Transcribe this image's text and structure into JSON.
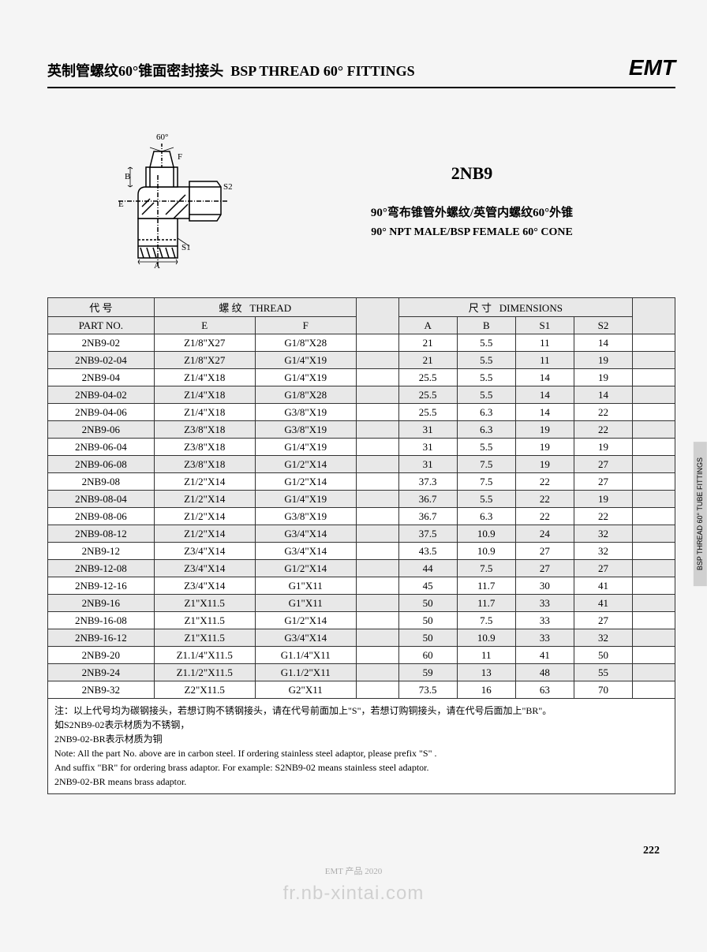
{
  "header": {
    "title_cn": "英制管螺纹60°锥面密封接头",
    "title_en": "BSP THREAD 60° FITTINGS",
    "logo": "EMT"
  },
  "product": {
    "code": "2NB9",
    "desc_cn": "90°弯布锥管外螺纹/英管内螺纹60°外锥",
    "desc_en": "90° NPT MALE/BSP FEMALE 60° CONE"
  },
  "diagram_labels": {
    "angle": "60°",
    "F": "F",
    "B": "B",
    "E": "E",
    "A": "A",
    "S1": "S1",
    "S2": "S2"
  },
  "table": {
    "header_groups": {
      "part_cn": "代 号",
      "part_en": "PART NO.",
      "thread_cn": "螺 纹",
      "thread_en": "THREAD",
      "dim_cn": "尺 寸",
      "dim_en": "DIMENSIONS"
    },
    "columns": [
      "E",
      "F",
      "A",
      "B",
      "S1",
      "S2"
    ],
    "rows": [
      {
        "p": "2NB9-02",
        "e": "Z1/8\"X27",
        "f": "G1/8\"X28",
        "a": "21",
        "b": "5.5",
        "s1": "11",
        "s2": "14"
      },
      {
        "p": "2NB9-02-04",
        "e": "Z1/8\"X27",
        "f": "G1/4\"X19",
        "a": "21",
        "b": "5.5",
        "s1": "11",
        "s2": "19"
      },
      {
        "p": "2NB9-04",
        "e": "Z1/4\"X18",
        "f": "G1/4\"X19",
        "a": "25.5",
        "b": "5.5",
        "s1": "14",
        "s2": "19"
      },
      {
        "p": "2NB9-04-02",
        "e": "Z1/4\"X18",
        "f": "G1/8\"X28",
        "a": "25.5",
        "b": "5.5",
        "s1": "14",
        "s2": "14"
      },
      {
        "p": "2NB9-04-06",
        "e": "Z1/4\"X18",
        "f": "G3/8\"X19",
        "a": "25.5",
        "b": "6.3",
        "s1": "14",
        "s2": "22"
      },
      {
        "p": "2NB9-06",
        "e": "Z3/8\"X18",
        "f": "G3/8\"X19",
        "a": "31",
        "b": "6.3",
        "s1": "19",
        "s2": "22"
      },
      {
        "p": "2NB9-06-04",
        "e": "Z3/8\"X18",
        "f": "G1/4\"X19",
        "a": "31",
        "b": "5.5",
        "s1": "19",
        "s2": "19"
      },
      {
        "p": "2NB9-06-08",
        "e": "Z3/8\"X18",
        "f": "G1/2\"X14",
        "a": "31",
        "b": "7.5",
        "s1": "19",
        "s2": "27"
      },
      {
        "p": "2NB9-08",
        "e": "Z1/2\"X14",
        "f": "G1/2\"X14",
        "a": "37.3",
        "b": "7.5",
        "s1": "22",
        "s2": "27"
      },
      {
        "p": "2NB9-08-04",
        "e": "Z1/2\"X14",
        "f": "G1/4\"X19",
        "a": "36.7",
        "b": "5.5",
        "s1": "22",
        "s2": "19"
      },
      {
        "p": "2NB9-08-06",
        "e": "Z1/2\"X14",
        "f": "G3/8\"X19",
        "a": "36.7",
        "b": "6.3",
        "s1": "22",
        "s2": "22"
      },
      {
        "p": "2NB9-08-12",
        "e": "Z1/2\"X14",
        "f": "G3/4\"X14",
        "a": "37.5",
        "b": "10.9",
        "s1": "24",
        "s2": "32"
      },
      {
        "p": "2NB9-12",
        "e": "Z3/4\"X14",
        "f": "G3/4\"X14",
        "a": "43.5",
        "b": "10.9",
        "s1": "27",
        "s2": "32"
      },
      {
        "p": "2NB9-12-08",
        "e": "Z3/4\"X14",
        "f": "G1/2\"X14",
        "a": "44",
        "b": "7.5",
        "s1": "27",
        "s2": "27"
      },
      {
        "p": "2NB9-12-16",
        "e": "Z3/4\"X14",
        "f": "G1\"X11",
        "a": "45",
        "b": "11.7",
        "s1": "30",
        "s2": "41"
      },
      {
        "p": "2NB9-16",
        "e": "Z1\"X11.5",
        "f": "G1\"X11",
        "a": "50",
        "b": "11.7",
        "s1": "33",
        "s2": "41"
      },
      {
        "p": "2NB9-16-08",
        "e": "Z1\"X11.5",
        "f": "G1/2\"X14",
        "a": "50",
        "b": "7.5",
        "s1": "33",
        "s2": "27"
      },
      {
        "p": "2NB9-16-12",
        "e": "Z1\"X11.5",
        "f": "G3/4\"X14",
        "a": "50",
        "b": "10.9",
        "s1": "33",
        "s2": "32"
      },
      {
        "p": "2NB9-20",
        "e": "Z1.1/4\"X11.5",
        "f": "G1.1/4\"X11",
        "a": "60",
        "b": "11",
        "s1": "41",
        "s2": "50"
      },
      {
        "p": "2NB9-24",
        "e": "Z1.1/2\"X11.5",
        "f": "G1.1/2\"X11",
        "a": "59",
        "b": "13",
        "s1": "48",
        "s2": "55"
      },
      {
        "p": "2NB9-32",
        "e": "Z2\"X11.5",
        "f": "G2\"X11",
        "a": "73.5",
        "b": "16",
        "s1": "63",
        "s2": "70"
      }
    ]
  },
  "notes": {
    "cn1": "注：以上代号均为碳钢接头，若想订购不锈钢接头，请在代号前面加上\"S\"，若想订购铜接头，请在代号后面加上\"BR\"。",
    "cn2": "如S2NB9-02表示材质为不锈钢，",
    "cn3": "2NB9-02-BR表示材质为铜",
    "en1": "Note: All the part No. above are in carbon steel. If ordering stainless steel adaptor, please prefix \"S\" .",
    "en2": "And suffix \"BR\" for ordering brass adaptor. For example: S2NB9-02 means stainless steel adaptor.",
    "en3": "2NB9-02-BR means brass adaptor."
  },
  "side_tab": "BSP THREAD 60°\nTUBE FITTINGS",
  "page_num": "222",
  "footer": "EMT 产品 2020",
  "watermark": "fr.nb-xintai.com"
}
